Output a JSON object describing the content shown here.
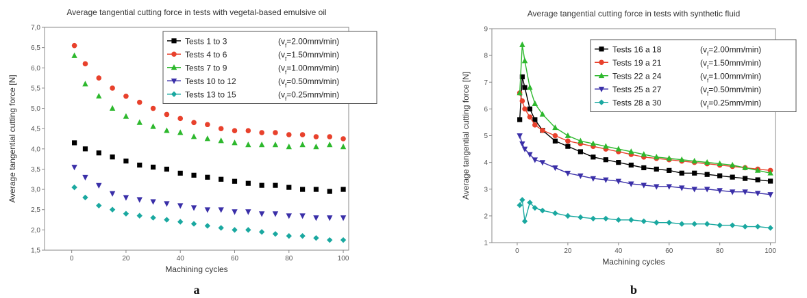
{
  "chart_data": [
    {
      "type": "scatter",
      "panel_label": "a",
      "title": "Average tangential cutting force in tests with vegetal-based emulsive oil",
      "xlabel": "Machining cycles",
      "ylabel": "Average tangential cutting force [N]",
      "xlim": [
        -10,
        102
      ],
      "ylim": [
        1.5,
        7.0
      ],
      "xticks": [
        0,
        20,
        40,
        60,
        80,
        100
      ],
      "yticks": [
        1.5,
        2.0,
        2.5,
        3.0,
        3.5,
        4.0,
        4.5,
        5.0,
        5.5,
        6.0,
        6.5,
        7.0
      ],
      "ytick_labels": [
        "1,5",
        "2,0",
        "2,5",
        "3,0",
        "3,5",
        "4,0",
        "4,5",
        "5,0",
        "5,5",
        "6,0",
        "6,5",
        "7,0"
      ],
      "grid": false,
      "legend_position": "top-right",
      "series": [
        {
          "name": "Tests 1 to 3",
          "note": "(v",
          "note_sub": "f",
          "note_after": "=2.00mm/min)",
          "color": "#000000",
          "marker": "square",
          "x": [
            1,
            5,
            10,
            15,
            20,
            25,
            30,
            35,
            40,
            45,
            50,
            55,
            60,
            65,
            70,
            75,
            80,
            85,
            90,
            95,
            100
          ],
          "y": [
            4.15,
            4.0,
            3.9,
            3.8,
            3.7,
            3.6,
            3.55,
            3.5,
            3.4,
            3.35,
            3.3,
            3.25,
            3.2,
            3.15,
            3.1,
            3.1,
            3.05,
            3.0,
            3.0,
            2.95,
            3.0
          ]
        },
        {
          "name": "Tests 4 to 6",
          "note": "(v",
          "note_sub": "f",
          "note_after": "=1.50mm/min)",
          "color": "#e8412c",
          "marker": "circle",
          "x": [
            1,
            5,
            10,
            15,
            20,
            25,
            30,
            35,
            40,
            45,
            50,
            55,
            60,
            65,
            70,
            75,
            80,
            85,
            90,
            95,
            100
          ],
          "y": [
            6.55,
            6.1,
            5.75,
            5.5,
            5.3,
            5.15,
            5.0,
            4.85,
            4.75,
            4.65,
            4.6,
            4.5,
            4.45,
            4.45,
            4.4,
            4.4,
            4.35,
            4.35,
            4.3,
            4.3,
            4.25
          ]
        },
        {
          "name": "Tests 7 to 9",
          "note": "(v",
          "note_sub": "f",
          "note_after": "=1.00mm/min)",
          "color": "#2db82d",
          "marker": "triangle-up",
          "x": [
            1,
            5,
            10,
            15,
            20,
            25,
            30,
            35,
            40,
            45,
            50,
            55,
            60,
            65,
            70,
            75,
            80,
            85,
            90,
            95,
            100
          ],
          "y": [
            6.3,
            5.6,
            5.3,
            5.0,
            4.8,
            4.65,
            4.55,
            4.45,
            4.4,
            4.3,
            4.25,
            4.2,
            4.15,
            4.1,
            4.1,
            4.1,
            4.05,
            4.1,
            4.05,
            4.1,
            4.05
          ]
        },
        {
          "name": "Tests 10 to 12",
          "note": "(v",
          "note_sub": "f",
          "note_after": "=0.50mm/min)",
          "color": "#3a2fa8",
          "marker": "triangle-down",
          "x": [
            1,
            5,
            10,
            15,
            20,
            25,
            30,
            35,
            40,
            45,
            50,
            55,
            60,
            65,
            70,
            75,
            80,
            85,
            90,
            95,
            100
          ],
          "y": [
            3.55,
            3.3,
            3.1,
            2.9,
            2.8,
            2.75,
            2.7,
            2.65,
            2.6,
            2.55,
            2.5,
            2.5,
            2.45,
            2.45,
            2.4,
            2.4,
            2.35,
            2.35,
            2.3,
            2.3,
            2.3
          ]
        },
        {
          "name": "Tests 13 to 15",
          "note": "(v",
          "note_sub": "f",
          "note_after": "=0.25mm/min)",
          "color": "#1aa8a0",
          "marker": "diamond",
          "x": [
            1,
            5,
            10,
            15,
            20,
            25,
            30,
            35,
            40,
            45,
            50,
            55,
            60,
            65,
            70,
            75,
            80,
            85,
            90,
            95,
            100
          ],
          "y": [
            3.05,
            2.8,
            2.6,
            2.5,
            2.4,
            2.35,
            2.3,
            2.25,
            2.2,
            2.15,
            2.1,
            2.05,
            2.0,
            2.0,
            1.95,
            1.9,
            1.85,
            1.85,
            1.8,
            1.75,
            1.75
          ]
        }
      ]
    },
    {
      "type": "line",
      "panel_label": "b",
      "title": "Average tangential cutting force in tests with synthetic fluid",
      "xlabel": "Machining cycles",
      "ylabel": "Average tangential cutting force [N]",
      "xlim": [
        -10,
        102
      ],
      "ylim": [
        1,
        9
      ],
      "xticks": [
        0,
        20,
        40,
        60,
        80,
        100
      ],
      "yticks": [
        1,
        2,
        3,
        4,
        5,
        6,
        7,
        8,
        9
      ],
      "ytick_labels": [
        "1",
        "2",
        "3",
        "4",
        "5",
        "6",
        "7",
        "8",
        "9"
      ],
      "grid": false,
      "legend_position": "top-right",
      "series": [
        {
          "name": "Tests 16 a 18",
          "note": "(v",
          "note_sub": "f",
          "note_after": "=2.00mm/min)",
          "color": "#000000",
          "marker": "square",
          "x": [
            1,
            2,
            3,
            5,
            7,
            10,
            15,
            20,
            25,
            30,
            35,
            40,
            45,
            50,
            55,
            60,
            65,
            70,
            75,
            80,
            85,
            90,
            95,
            100
          ],
          "y": [
            5.6,
            7.2,
            6.8,
            6.0,
            5.6,
            5.2,
            4.8,
            4.6,
            4.4,
            4.2,
            4.1,
            4.0,
            3.9,
            3.8,
            3.75,
            3.7,
            3.6,
            3.6,
            3.55,
            3.5,
            3.45,
            3.4,
            3.35,
            3.3
          ]
        },
        {
          "name": "Tests 19 a 21",
          "note": "(v",
          "note_sub": "f",
          "note_after": "=1.50mm/min)",
          "color": "#e8412c",
          "marker": "circle",
          "x": [
            1,
            2,
            3,
            5,
            7,
            10,
            15,
            20,
            25,
            30,
            35,
            40,
            45,
            50,
            55,
            60,
            65,
            70,
            75,
            80,
            85,
            90,
            95,
            100
          ],
          "y": [
            6.6,
            6.3,
            6.0,
            5.7,
            5.4,
            5.2,
            5.0,
            4.8,
            4.7,
            4.6,
            4.5,
            4.4,
            4.3,
            4.2,
            4.15,
            4.1,
            4.05,
            4.0,
            3.95,
            3.9,
            3.85,
            3.8,
            3.75,
            3.7
          ]
        },
        {
          "name": "Tests 22 a 24",
          "note": "(v",
          "note_sub": "f",
          "note_after": "=1.00mm/min)",
          "color": "#2db82d",
          "marker": "triangle-up",
          "x": [
            1,
            2,
            3,
            5,
            7,
            10,
            15,
            20,
            25,
            30,
            35,
            40,
            45,
            50,
            55,
            60,
            65,
            70,
            75,
            80,
            85,
            90,
            95,
            100
          ],
          "y": [
            6.6,
            8.4,
            7.8,
            6.8,
            6.2,
            5.8,
            5.3,
            5.0,
            4.8,
            4.7,
            4.6,
            4.5,
            4.4,
            4.3,
            4.2,
            4.15,
            4.1,
            4.05,
            4.0,
            3.95,
            3.9,
            3.8,
            3.7,
            3.6
          ]
        },
        {
          "name": "Tests 25 a 27",
          "note": "(v",
          "note_sub": "f",
          "note_after": "=0.50mm/min)",
          "color": "#3a2fa8",
          "marker": "triangle-down",
          "x": [
            1,
            2,
            3,
            5,
            7,
            10,
            15,
            20,
            25,
            30,
            35,
            40,
            45,
            50,
            55,
            60,
            65,
            70,
            75,
            80,
            85,
            90,
            95,
            100
          ],
          "y": [
            5.0,
            4.7,
            4.5,
            4.3,
            4.1,
            4.0,
            3.8,
            3.6,
            3.5,
            3.4,
            3.35,
            3.3,
            3.2,
            3.15,
            3.1,
            3.1,
            3.05,
            3.0,
            3.0,
            2.95,
            2.9,
            2.9,
            2.85,
            2.8
          ]
        },
        {
          "name": "Tests 28 a 30",
          "note": "(v",
          "note_sub": "f",
          "note_after": "=0.25mm/min)",
          "color": "#1aa8a0",
          "marker": "diamond",
          "x": [
            1,
            2,
            3,
            5,
            7,
            10,
            15,
            20,
            25,
            30,
            35,
            40,
            45,
            50,
            55,
            60,
            65,
            70,
            75,
            80,
            85,
            90,
            95,
            100
          ],
          "y": [
            2.4,
            2.6,
            1.8,
            2.5,
            2.3,
            2.2,
            2.1,
            2.0,
            1.95,
            1.9,
            1.9,
            1.85,
            1.85,
            1.8,
            1.75,
            1.75,
            1.7,
            1.7,
            1.7,
            1.65,
            1.65,
            1.6,
            1.6,
            1.55
          ]
        }
      ]
    }
  ]
}
